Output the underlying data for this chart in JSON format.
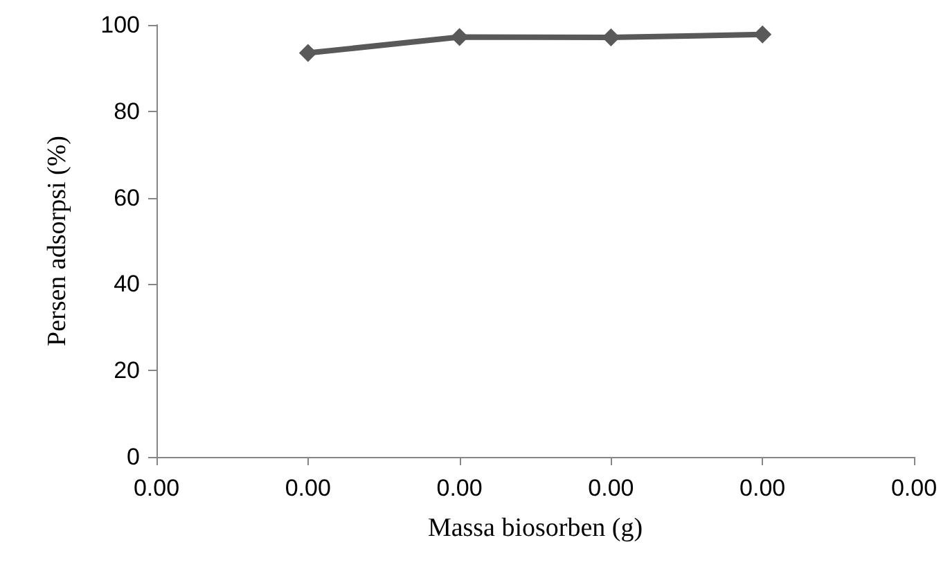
{
  "chart_data": {
    "type": "line",
    "xlabel": "Massa biosorben (g)",
    "ylabel": "Persen adsorpsi (%)",
    "categories": [
      "0.00",
      "0.00",
      "0.00",
      "0.00",
      "0.00",
      "0.00"
    ],
    "series": [
      {
        "color": "#595959",
        "values": [
          null,
          93.5,
          97.2,
          97.1,
          97.8,
          null
        ]
      }
    ],
    "ylim": [
      0,
      100
    ],
    "yticks": [
      0,
      20,
      40,
      60,
      80,
      100
    ],
    "grid": false,
    "marker": "diamond",
    "line_style": "solid"
  }
}
